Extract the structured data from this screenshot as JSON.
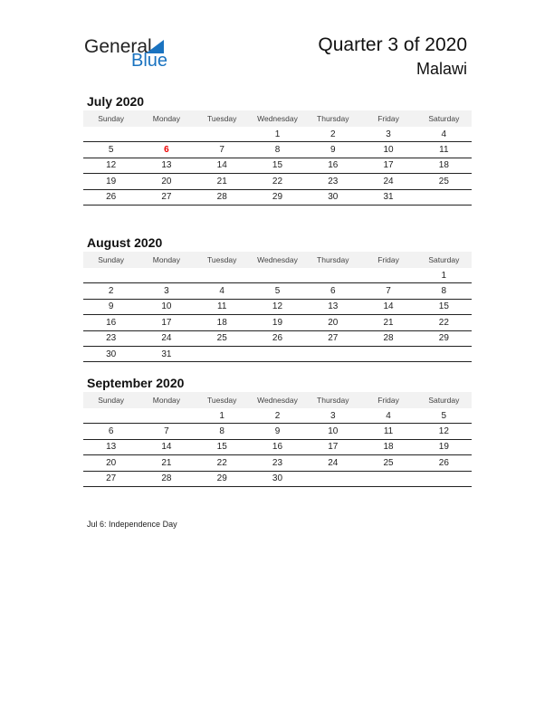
{
  "logo": {
    "text1": "General",
    "text2": "Blue"
  },
  "header": {
    "title": "Quarter 3 of 2020",
    "country": "Malawi"
  },
  "weekdays": [
    "Sunday",
    "Monday",
    "Tuesday",
    "Wednesday",
    "Thursday",
    "Friday",
    "Saturday"
  ],
  "colors": {
    "holiday": "#e00000",
    "brand": "#1a73c0"
  },
  "months": [
    {
      "title": "July 2020",
      "weeks": [
        [
          "",
          "",
          "",
          "1",
          "2",
          "3",
          "4"
        ],
        [
          "5",
          "6",
          "7",
          "8",
          "9",
          "10",
          "11"
        ],
        [
          "12",
          "13",
          "14",
          "15",
          "16",
          "17",
          "18"
        ],
        [
          "19",
          "20",
          "21",
          "22",
          "23",
          "24",
          "25"
        ],
        [
          "26",
          "27",
          "28",
          "29",
          "30",
          "31",
          ""
        ]
      ],
      "holidays": [
        "6"
      ]
    },
    {
      "title": "August 2020",
      "weeks": [
        [
          "",
          "",
          "",
          "",
          "",
          "",
          "1"
        ],
        [
          "2",
          "3",
          "4",
          "5",
          "6",
          "7",
          "8"
        ],
        [
          "9",
          "10",
          "11",
          "12",
          "13",
          "14",
          "15"
        ],
        [
          "16",
          "17",
          "18",
          "19",
          "20",
          "21",
          "22"
        ],
        [
          "23",
          "24",
          "25",
          "26",
          "27",
          "28",
          "29"
        ],
        [
          "30",
          "31",
          "",
          "",
          "",
          "",
          ""
        ]
      ],
      "holidays": []
    },
    {
      "title": "September 2020",
      "weeks": [
        [
          "",
          "",
          "1",
          "2",
          "3",
          "4",
          "5"
        ],
        [
          "6",
          "7",
          "8",
          "9",
          "10",
          "11",
          "12"
        ],
        [
          "13",
          "14",
          "15",
          "16",
          "17",
          "18",
          "19"
        ],
        [
          "20",
          "21",
          "22",
          "23",
          "24",
          "25",
          "26"
        ],
        [
          "27",
          "28",
          "29",
          "30",
          "",
          "",
          ""
        ]
      ],
      "holidays": []
    }
  ],
  "notes": [
    "Jul 6: Independence Day"
  ]
}
